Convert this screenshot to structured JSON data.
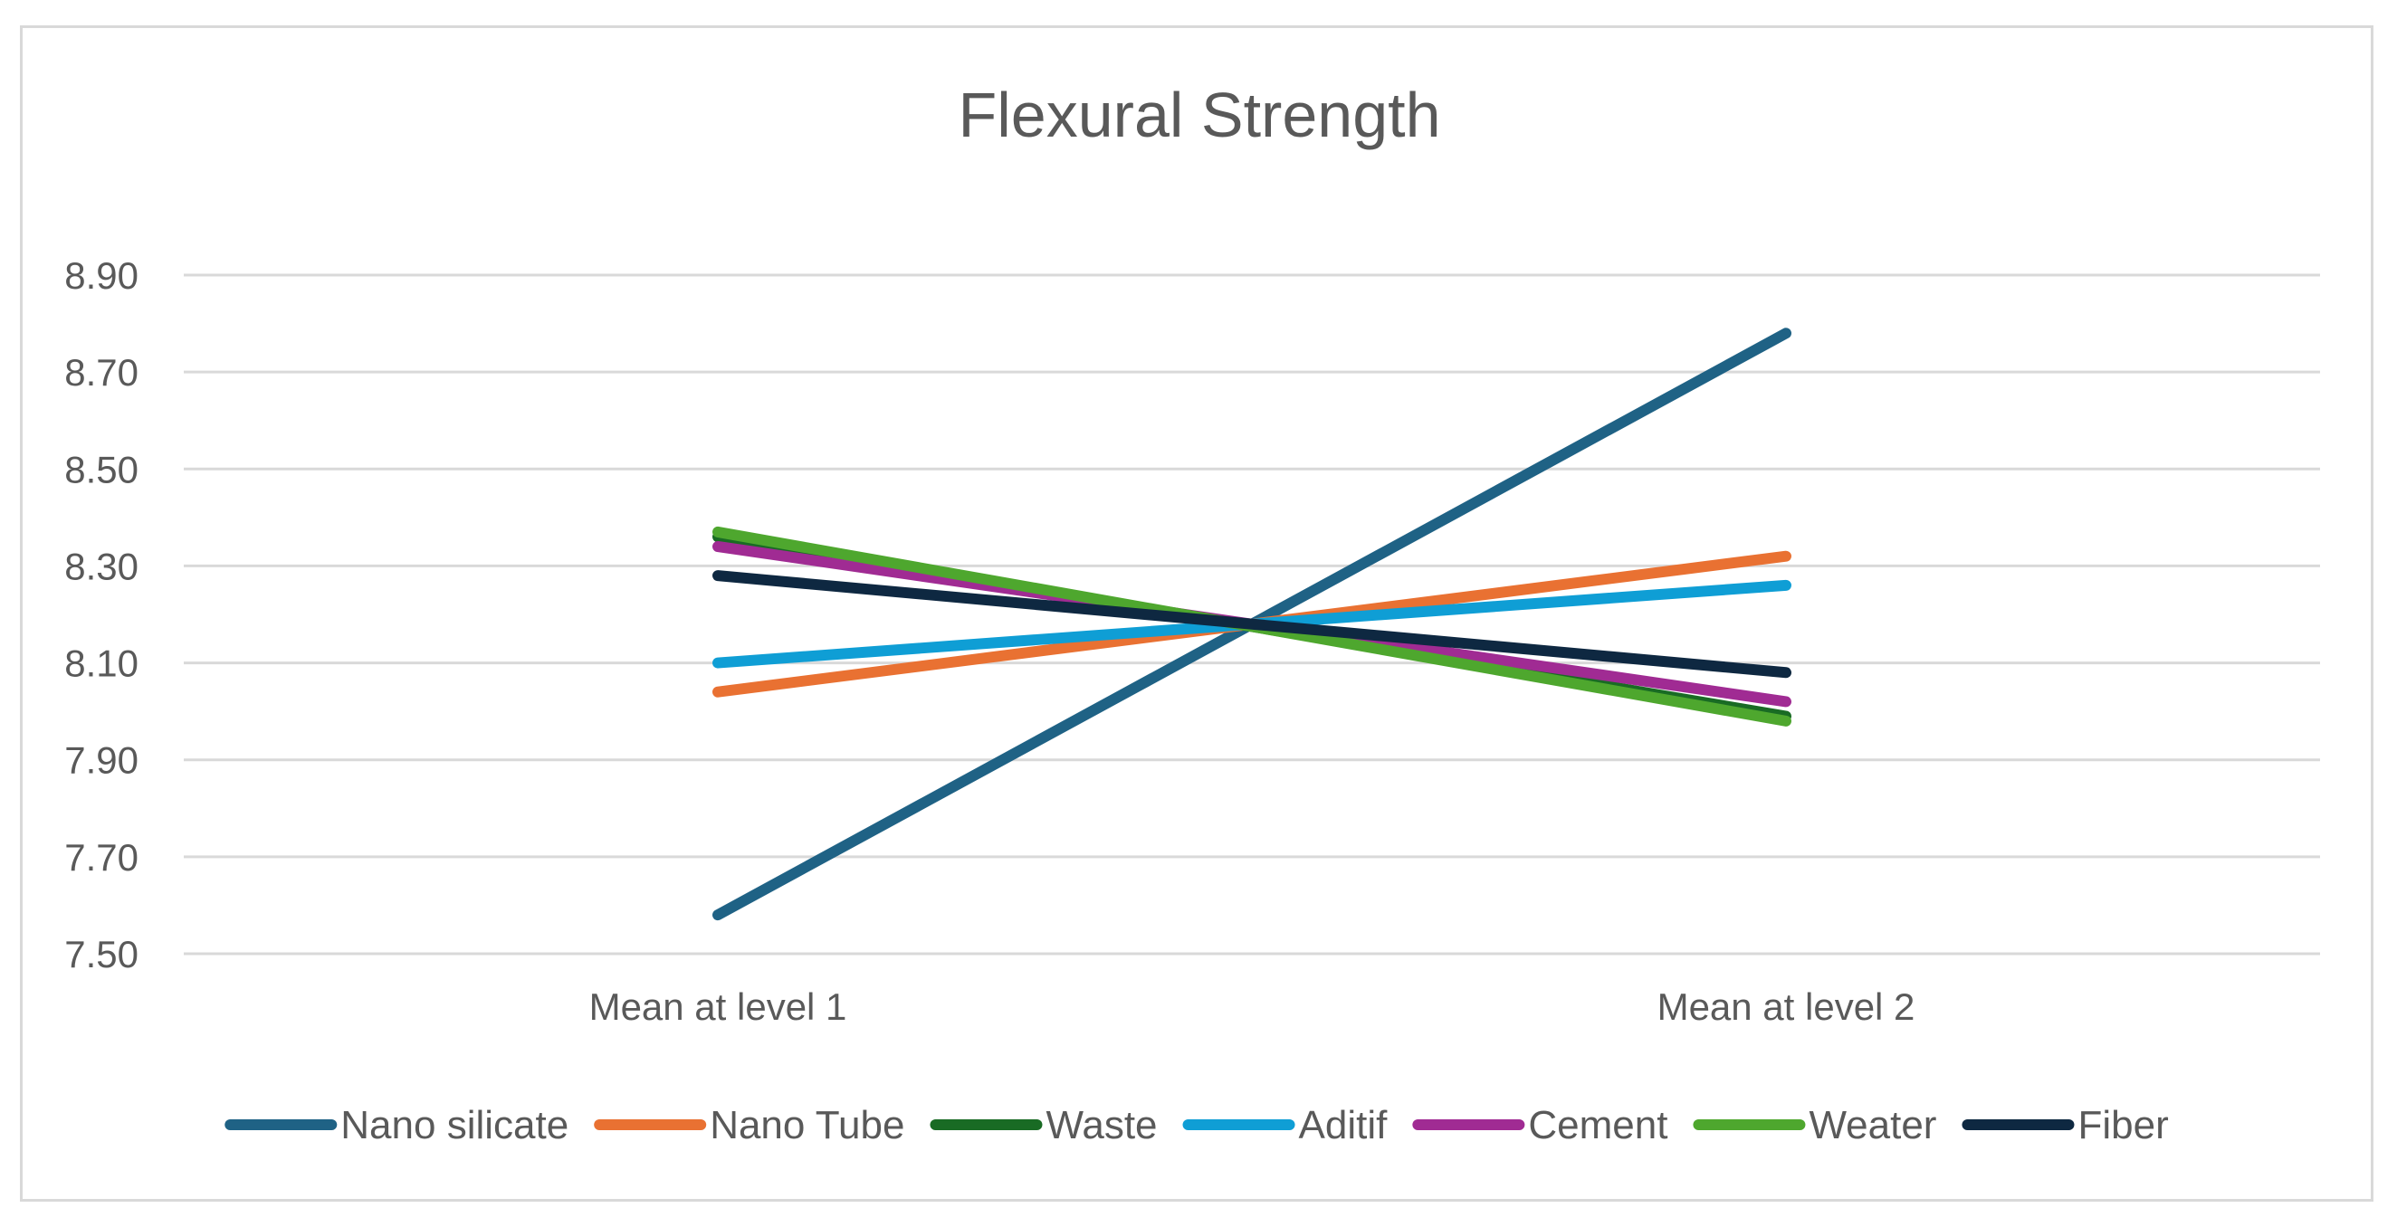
{
  "chart_data": {
    "type": "line",
    "title": "Flexural Strength",
    "xlabel": "",
    "ylabel": "",
    "categories": [
      "Mean at level 1",
      "Mean at level 2"
    ],
    "ylim": [
      7.5,
      8.9
    ],
    "yticks": [
      "8.90",
      "8.70",
      "8.50",
      "8.30",
      "8.10",
      "7.90",
      "7.70",
      "7.50"
    ],
    "grid": true,
    "legend_position": "bottom",
    "series": [
      {
        "name": "Nano silicate",
        "color": "#1f6285",
        "values": [
          7.58,
          8.78
        ]
      },
      {
        "name": "Nano Tube",
        "color": "#e97132",
        "values": [
          8.04,
          8.32
        ]
      },
      {
        "name": "Waste",
        "color": "#196b24",
        "values": [
          8.36,
          7.99
        ]
      },
      {
        "name": "Aditif",
        "color": "#0f9ed5",
        "values": [
          8.1,
          8.26
        ]
      },
      {
        "name": "Cement",
        "color": "#a02b93",
        "values": [
          8.34,
          8.02
        ]
      },
      {
        "name": "Weater",
        "color": "#4ea72e",
        "values": [
          8.37,
          7.98
        ]
      },
      {
        "name": "Fiber",
        "color": "#0e2841",
        "values": [
          8.28,
          8.08
        ]
      }
    ]
  }
}
